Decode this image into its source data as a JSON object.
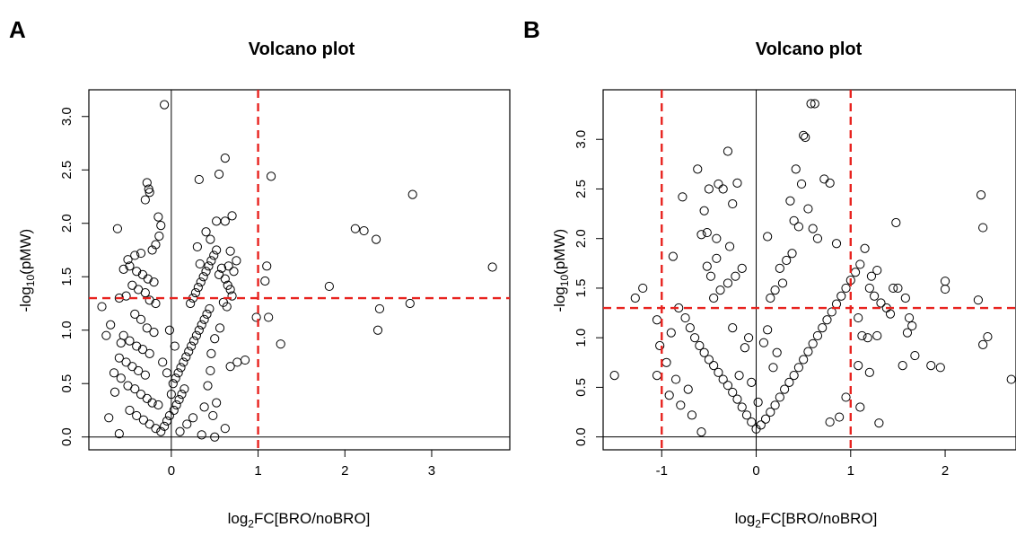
{
  "panels": {
    "a": {
      "label": "A"
    },
    "b": {
      "label": "B"
    }
  },
  "colors": {
    "threshold": "#e8231f",
    "points": "#000000",
    "axis": "#000000"
  },
  "chart_data": [
    {
      "type": "scatter",
      "title": "Volcano plot",
      "xlabel": "log2FC[BRO/noBRO]",
      "xlabel_main": "log",
      "xlabel_sub": "2",
      "xlabel_rest": "FC[BRO/noBRO]",
      "ylabel": "-log10(pMW)",
      "ylabel_main": "-log",
      "ylabel_sub": "10",
      "ylabel_rest": "(pMW)",
      "xlim": [
        -0.95,
        3.9
      ],
      "ylim": [
        -0.12,
        3.25
      ],
      "xticks": [
        0,
        1,
        2,
        3
      ],
      "xtick_labels": [
        "0",
        "1",
        "2",
        "3"
      ],
      "yticks": [
        0.0,
        0.5,
        1.0,
        1.5,
        2.0,
        2.5,
        3.0
      ],
      "ytick_labels": [
        "0.0",
        "0.5",
        "1.0",
        "1.5",
        "2.0",
        "2.5",
        "3.0"
      ],
      "vlines_solid": [
        0
      ],
      "vlines_dashed": [
        1
      ],
      "hlines_solid": [
        0
      ],
      "hlines_dashed": [
        1.3
      ],
      "grid": false,
      "legend": "none",
      "points": [
        [
          -0.08,
          3.11
        ],
        [
          -0.28,
          2.38
        ],
        [
          -0.26,
          2.32
        ],
        [
          -0.25,
          2.29
        ],
        [
          -0.3,
          2.22
        ],
        [
          -0.15,
          2.06
        ],
        [
          -0.12,
          1.98
        ],
        [
          -0.14,
          1.88
        ],
        [
          -0.62,
          1.95
        ],
        [
          -0.18,
          1.8
        ],
        [
          -0.22,
          1.75
        ],
        [
          -0.35,
          1.72
        ],
        [
          -0.42,
          1.7
        ],
        [
          -0.5,
          1.66
        ],
        [
          -0.48,
          1.6
        ],
        [
          -0.55,
          1.57
        ],
        [
          -0.4,
          1.55
        ],
        [
          -0.33,
          1.52
        ],
        [
          -0.27,
          1.48
        ],
        [
          -0.2,
          1.45
        ],
        [
          -0.45,
          1.42
        ],
        [
          -0.38,
          1.38
        ],
        [
          -0.3,
          1.35
        ],
        [
          -0.52,
          1.32
        ],
        [
          -0.6,
          1.3
        ],
        [
          -0.25,
          1.28
        ],
        [
          -0.18,
          1.25
        ],
        [
          -0.8,
          1.22
        ],
        [
          -0.7,
          1.05
        ],
        [
          -0.42,
          1.15
        ],
        [
          -0.35,
          1.1
        ],
        [
          -0.28,
          1.02
        ],
        [
          -0.2,
          0.98
        ],
        [
          -0.55,
          0.95
        ],
        [
          -0.48,
          0.9
        ],
        [
          -0.4,
          0.85
        ],
        [
          -0.33,
          0.82
        ],
        [
          -0.25,
          0.78
        ],
        [
          -0.6,
          0.74
        ],
        [
          -0.52,
          0.7
        ],
        [
          -0.45,
          0.66
        ],
        [
          -0.38,
          0.62
        ],
        [
          -0.3,
          0.58
        ],
        [
          -0.58,
          0.55
        ],
        [
          -0.5,
          0.48
        ],
        [
          -0.42,
          0.45
        ],
        [
          -0.35,
          0.4
        ],
        [
          -0.28,
          0.36
        ],
        [
          -0.22,
          0.32
        ],
        [
          -0.15,
          0.3
        ],
        [
          -0.48,
          0.25
        ],
        [
          -0.4,
          0.2
        ],
        [
          -0.32,
          0.16
        ],
        [
          -0.25,
          0.12
        ],
        [
          -0.18,
          0.08
        ],
        [
          -0.6,
          0.03
        ],
        [
          -0.12,
          0.05
        ],
        [
          -0.08,
          0.1
        ],
        [
          -0.05,
          0.15
        ],
        [
          -0.02,
          0.2
        ],
        [
          0.03,
          0.25
        ],
        [
          0.06,
          0.3
        ],
        [
          0.09,
          0.35
        ],
        [
          0.12,
          0.4
        ],
        [
          0.15,
          0.45
        ],
        [
          0.02,
          0.5
        ],
        [
          0.05,
          0.55
        ],
        [
          0.08,
          0.6
        ],
        [
          0.11,
          0.65
        ],
        [
          0.14,
          0.7
        ],
        [
          0.17,
          0.75
        ],
        [
          0.2,
          0.8
        ],
        [
          0.23,
          0.85
        ],
        [
          0.26,
          0.9
        ],
        [
          0.29,
          0.95
        ],
        [
          0.32,
          1.0
        ],
        [
          0.35,
          1.05
        ],
        [
          0.38,
          1.1
        ],
        [
          0.41,
          1.15
        ],
        [
          0.44,
          1.2
        ],
        [
          0.22,
          1.25
        ],
        [
          0.25,
          1.3
        ],
        [
          0.28,
          1.35
        ],
        [
          0.31,
          1.4
        ],
        [
          0.34,
          1.45
        ],
        [
          0.37,
          1.5
        ],
        [
          0.4,
          1.55
        ],
        [
          0.43,
          1.6
        ],
        [
          0.46,
          1.65
        ],
        [
          0.49,
          1.7
        ],
        [
          0.52,
          1.75
        ],
        [
          0.3,
          1.78
        ],
        [
          0.33,
          1.62
        ],
        [
          0.58,
          1.58
        ],
        [
          0.55,
          1.52
        ],
        [
          0.62,
          1.48
        ],
        [
          0.65,
          1.42
        ],
        [
          0.68,
          1.38
        ],
        [
          0.7,
          1.32
        ],
        [
          0.6,
          1.26
        ],
        [
          0.64,
          1.22
        ],
        [
          0.66,
          1.6
        ],
        [
          0.72,
          1.55
        ],
        [
          0.75,
          1.65
        ],
        [
          0.68,
          1.74
        ],
        [
          0.62,
          2.61
        ],
        [
          0.55,
          2.46
        ],
        [
          0.32,
          2.41
        ],
        [
          0.7,
          2.07
        ],
        [
          0.62,
          2.02
        ],
        [
          0.52,
          2.02
        ],
        [
          0.4,
          1.92
        ],
        [
          0.45,
          1.85
        ],
        [
          1.15,
          2.44
        ],
        [
          1.08,
          1.46
        ],
        [
          1.1,
          1.6
        ],
        [
          0.98,
          1.12
        ],
        [
          1.12,
          1.12
        ],
        [
          1.26,
          0.87
        ],
        [
          0.85,
          0.72
        ],
        [
          0.76,
          0.7
        ],
        [
          0.68,
          0.66
        ],
        [
          0.45,
          0.62
        ],
        [
          0.52,
          0.32
        ],
        [
          0.48,
          0.2
        ],
        [
          0.5,
          0.0
        ],
        [
          0.35,
          0.02
        ],
        [
          0.62,
          0.08
        ],
        [
          1.82,
          1.41
        ],
        [
          2.12,
          1.95
        ],
        [
          2.22,
          1.93
        ],
        [
          2.36,
          1.85
        ],
        [
          2.38,
          1.0
        ],
        [
          2.4,
          1.2
        ],
        [
          2.75,
          1.25
        ],
        [
          2.78,
          2.27
        ],
        [
          3.7,
          1.59
        ],
        [
          0.1,
          0.05
        ],
        [
          0.18,
          0.12
        ],
        [
          0.25,
          0.18
        ],
        [
          0.0,
          0.4
        ],
        [
          -0.05,
          0.6
        ],
        [
          -0.1,
          0.7
        ],
        [
          0.04,
          0.85
        ],
        [
          -0.02,
          1.0
        ],
        [
          0.38,
          0.28
        ],
        [
          0.42,
          0.48
        ],
        [
          0.46,
          0.78
        ],
        [
          0.5,
          0.92
        ],
        [
          0.56,
          1.02
        ],
        [
          -0.65,
          0.42
        ],
        [
          -0.72,
          0.18
        ],
        [
          -0.66,
          0.6
        ],
        [
          -0.58,
          0.88
        ],
        [
          -0.75,
          0.95
        ]
      ]
    },
    {
      "type": "scatter",
      "title": "Volcano plot",
      "xlabel": "log2FC[BRO/noBRO]",
      "xlabel_main": "log",
      "xlabel_sub": "2",
      "xlabel_rest": "FC[BRO/noBRO]",
      "ylabel": "-log10(pMW)",
      "ylabel_main": "-log",
      "ylabel_sub": "10",
      "ylabel_rest": "(pMW)",
      "xlim": [
        -1.62,
        2.75
      ],
      "ylim": [
        -0.13,
        3.5
      ],
      "xticks": [
        -1,
        0,
        1,
        2
      ],
      "xtick_labels": [
        "-1",
        "0",
        "1",
        "2"
      ],
      "yticks": [
        0.0,
        0.5,
        1.0,
        1.5,
        2.0,
        2.5,
        3.0
      ],
      "ytick_labels": [
        "0.0",
        "0.5",
        "1.0",
        "1.5",
        "2.0",
        "2.5",
        "3.0"
      ],
      "vlines_solid": [
        0
      ],
      "vlines_dashed": [
        -1,
        1
      ],
      "hlines_solid": [
        0
      ],
      "hlines_dashed": [
        1.3
      ],
      "grid": false,
      "legend": "none",
      "points": [
        [
          0.62,
          3.36
        ],
        [
          0.58,
          3.36
        ],
        [
          0.5,
          3.04
        ],
        [
          0.52,
          3.02
        ],
        [
          -0.3,
          2.88
        ],
        [
          -0.62,
          2.7
        ],
        [
          -0.4,
          2.55
        ],
        [
          -0.35,
          2.5
        ],
        [
          -0.2,
          2.56
        ],
        [
          -0.5,
          2.5
        ],
        [
          -0.78,
          2.42
        ],
        [
          0.42,
          2.7
        ],
        [
          0.48,
          2.55
        ],
        [
          0.72,
          2.6
        ],
        [
          0.78,
          2.56
        ],
        [
          0.36,
          2.38
        ],
        [
          0.4,
          2.18
        ],
        [
          0.45,
          2.12
        ],
        [
          -0.25,
          2.35
        ],
        [
          -0.55,
          2.28
        ],
        [
          -0.58,
          2.04
        ],
        [
          -0.52,
          2.06
        ],
        [
          -0.42,
          2.0
        ],
        [
          -0.88,
          1.82
        ],
        [
          0.12,
          2.02
        ],
        [
          0.55,
          2.3
        ],
        [
          0.6,
          2.1
        ],
        [
          0.65,
          2.0
        ],
        [
          0.85,
          1.95
        ],
        [
          -1.5,
          0.62
        ],
        [
          -1.2,
          1.5
        ],
        [
          -1.28,
          1.4
        ],
        [
          -1.05,
          1.18
        ],
        [
          -1.02,
          0.92
        ],
        [
          -1.05,
          0.62
        ],
        [
          -0.85,
          0.58
        ],
        [
          -0.92,
          0.42
        ],
        [
          -0.8,
          0.32
        ],
        [
          -0.82,
          1.3
        ],
        [
          -0.75,
          1.2
        ],
        [
          -0.7,
          1.1
        ],
        [
          -0.65,
          1.0
        ],
        [
          -0.6,
          0.92
        ],
        [
          -0.55,
          0.85
        ],
        [
          -0.5,
          0.78
        ],
        [
          -0.45,
          0.72
        ],
        [
          -0.4,
          0.65
        ],
        [
          -0.35,
          0.58
        ],
        [
          -0.3,
          0.52
        ],
        [
          -0.25,
          0.45
        ],
        [
          -0.2,
          0.38
        ],
        [
          -0.15,
          0.3
        ],
        [
          -0.1,
          0.22
        ],
        [
          -0.05,
          0.15
        ],
        [
          0.0,
          0.08
        ],
        [
          0.05,
          0.12
        ],
        [
          0.1,
          0.18
        ],
        [
          0.15,
          0.25
        ],
        [
          0.2,
          0.32
        ],
        [
          0.25,
          0.4
        ],
        [
          0.3,
          0.48
        ],
        [
          0.35,
          0.55
        ],
        [
          0.4,
          0.62
        ],
        [
          0.45,
          0.7
        ],
        [
          0.5,
          0.78
        ],
        [
          0.55,
          0.86
        ],
        [
          0.6,
          0.94
        ],
        [
          0.65,
          1.02
        ],
        [
          0.7,
          1.1
        ],
        [
          0.75,
          1.18
        ],
        [
          0.8,
          1.26
        ],
        [
          0.85,
          1.34
        ],
        [
          0.9,
          1.42
        ],
        [
          0.95,
          1.5
        ],
        [
          1.0,
          1.58
        ],
        [
          1.05,
          1.66
        ],
        [
          1.1,
          1.74
        ],
        [
          1.15,
          1.9
        ],
        [
          1.22,
          1.62
        ],
        [
          1.28,
          1.68
        ],
        [
          1.2,
          1.5
        ],
        [
          1.25,
          1.42
        ],
        [
          1.32,
          1.35
        ],
        [
          1.38,
          1.3
        ],
        [
          1.42,
          1.24
        ],
        [
          1.08,
          1.2
        ],
        [
          1.12,
          1.02
        ],
        [
          1.18,
          1.0
        ],
        [
          1.28,
          1.02
        ],
        [
          1.45,
          1.5
        ],
        [
          1.5,
          1.5
        ],
        [
          1.48,
          2.16
        ],
        [
          1.58,
          1.4
        ],
        [
          1.62,
          1.2
        ],
        [
          1.65,
          1.12
        ],
        [
          1.6,
          1.05
        ],
        [
          1.55,
          0.72
        ],
        [
          1.68,
          0.82
        ],
        [
          1.85,
          0.72
        ],
        [
          1.95,
          0.7
        ],
        [
          2.0,
          1.57
        ],
        [
          2.0,
          1.49
        ],
        [
          2.38,
          2.44
        ],
        [
          2.4,
          2.11
        ],
        [
          2.35,
          1.38
        ],
        [
          2.4,
          0.93
        ],
        [
          2.45,
          1.01
        ],
        [
          2.7,
          0.58
        ],
        [
          1.1,
          0.3
        ],
        [
          1.3,
          0.14
        ],
        [
          1.2,
          0.65
        ],
        [
          1.08,
          0.72
        ],
        [
          0.95,
          0.4
        ],
        [
          0.88,
          0.2
        ],
        [
          0.78,
          0.15
        ],
        [
          -0.9,
          1.05
        ],
        [
          -0.95,
          0.75
        ],
        [
          -0.72,
          0.48
        ],
        [
          -0.68,
          0.22
        ],
        [
          -0.58,
          0.05
        ],
        [
          -0.45,
          1.4
        ],
        [
          -0.38,
          1.48
        ],
        [
          -0.3,
          1.55
        ],
        [
          -0.22,
          1.62
        ],
        [
          -0.15,
          1.7
        ],
        [
          -0.48,
          1.62
        ],
        [
          -0.52,
          1.72
        ],
        [
          -0.42,
          1.8
        ],
        [
          -0.28,
          1.92
        ],
        [
          0.25,
          1.7
        ],
        [
          0.32,
          1.78
        ],
        [
          0.38,
          1.85
        ],
        [
          0.28,
          1.55
        ],
        [
          0.2,
          1.48
        ],
        [
          0.15,
          1.4
        ],
        [
          -0.12,
          0.9
        ],
        [
          -0.08,
          1.0
        ],
        [
          0.08,
          0.95
        ],
        [
          0.12,
          1.08
        ],
        [
          -0.05,
          0.55
        ],
        [
          0.02,
          0.35
        ],
        [
          -0.18,
          0.62
        ],
        [
          0.18,
          0.7
        ],
        [
          0.22,
          0.85
        ],
        [
          -0.25,
          1.1
        ]
      ]
    }
  ]
}
